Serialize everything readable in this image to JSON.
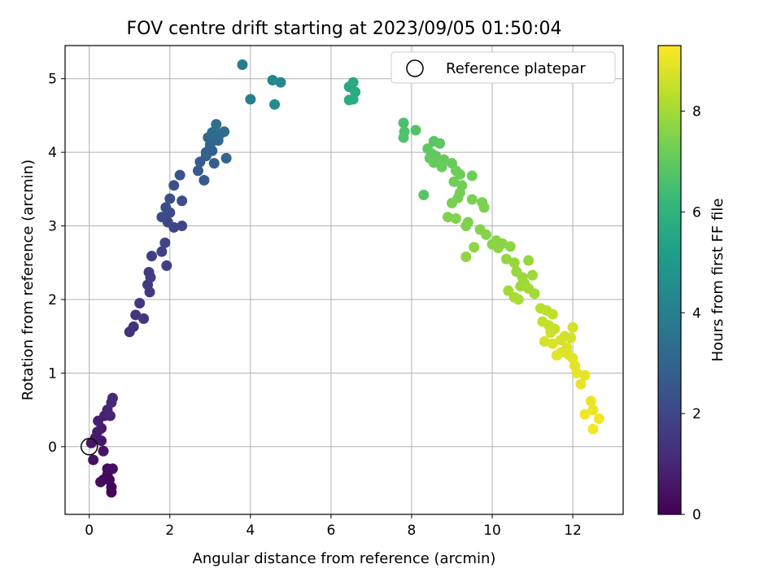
{
  "chart_data": {
    "type": "scatter",
    "title": "FOV centre drift starting at 2023/09/05 01:50:04",
    "xlabel": "Angular distance from reference (arcmin)",
    "ylabel": "Rotation from reference (arcmin)",
    "xlim": [
      -0.6,
      13.25
    ],
    "ylim": [
      -0.92,
      5.45
    ],
    "xticks": [
      0,
      2,
      4,
      6,
      8,
      10,
      12
    ],
    "yticks": [
      0,
      1,
      2,
      3,
      4,
      5
    ],
    "grid": true,
    "legend": {
      "label": "Reference platepar",
      "placement": "top-right"
    },
    "reference_point": {
      "x": 0,
      "y": 0
    },
    "colorbar": {
      "label": "Hours from first FF file",
      "min": 0,
      "max": 9.3,
      "ticks": [
        0,
        2,
        4,
        6,
        8
      ],
      "colormap": "viridis",
      "stops": [
        "#440154",
        "#482878",
        "#3e4989",
        "#31688e",
        "#26828e",
        "#1f9e89",
        "#35b779",
        "#6ece58",
        "#b5de2b",
        "#fde725"
      ]
    },
    "points": [
      {
        "x": 0.55,
        "y": -0.62,
        "h": 0.05
      },
      {
        "x": 0.55,
        "y": -0.55,
        "h": 0.1
      },
      {
        "x": 0.5,
        "y": -0.45,
        "h": 0.15
      },
      {
        "x": 0.45,
        "y": -0.38,
        "h": 0.2
      },
      {
        "x": 0.35,
        "y": -0.45,
        "h": 0.25
      },
      {
        "x": 0.28,
        "y": -0.48,
        "h": 0.3
      },
      {
        "x": 0.45,
        "y": -0.3,
        "h": 0.35
      },
      {
        "x": 0.58,
        "y": -0.3,
        "h": 0.4
      },
      {
        "x": 0.1,
        "y": -0.18,
        "h": 0.45
      },
      {
        "x": 0.35,
        "y": -0.06,
        "h": 0.5
      },
      {
        "x": 0.05,
        "y": 0.05,
        "h": 0.55
      },
      {
        "x": 0.3,
        "y": 0.08,
        "h": 0.6
      },
      {
        "x": 0.15,
        "y": 0.12,
        "h": 0.65
      },
      {
        "x": 0.2,
        "y": 0.2,
        "h": 0.7
      },
      {
        "x": 0.3,
        "y": 0.25,
        "h": 0.75
      },
      {
        "x": 0.22,
        "y": 0.35,
        "h": 0.8
      },
      {
        "x": 0.38,
        "y": 0.42,
        "h": 0.85
      },
      {
        "x": 0.45,
        "y": 0.5,
        "h": 0.9
      },
      {
        "x": 0.52,
        "y": 0.42,
        "h": 0.95
      },
      {
        "x": 0.55,
        "y": 0.6,
        "h": 1.0
      },
      {
        "x": 0.58,
        "y": 0.66,
        "h": 1.05
      },
      {
        "x": 1.0,
        "y": 1.56,
        "h": 1.3
      },
      {
        "x": 1.1,
        "y": 1.63,
        "h": 1.35
      },
      {
        "x": 1.15,
        "y": 1.79,
        "h": 1.4
      },
      {
        "x": 1.35,
        "y": 1.74,
        "h": 1.45
      },
      {
        "x": 1.25,
        "y": 1.95,
        "h": 1.5
      },
      {
        "x": 1.5,
        "y": 2.1,
        "h": 1.55
      },
      {
        "x": 1.45,
        "y": 2.2,
        "h": 1.6
      },
      {
        "x": 1.52,
        "y": 2.3,
        "h": 1.65
      },
      {
        "x": 1.48,
        "y": 2.37,
        "h": 1.7
      },
      {
        "x": 1.55,
        "y": 2.59,
        "h": 1.75
      },
      {
        "x": 1.92,
        "y": 2.46,
        "h": 1.8
      },
      {
        "x": 1.8,
        "y": 2.65,
        "h": 1.85
      },
      {
        "x": 1.88,
        "y": 2.77,
        "h": 1.9
      },
      {
        "x": 2.1,
        "y": 2.98,
        "h": 1.95
      },
      {
        "x": 2.3,
        "y": 3.0,
        "h": 2.0
      },
      {
        "x": 1.95,
        "y": 3.05,
        "h": 2.05
      },
      {
        "x": 1.8,
        "y": 3.12,
        "h": 2.1
      },
      {
        "x": 2.0,
        "y": 3.18,
        "h": 2.15
      },
      {
        "x": 1.9,
        "y": 3.25,
        "h": 2.2
      },
      {
        "x": 2.3,
        "y": 3.34,
        "h": 2.25
      },
      {
        "x": 2.0,
        "y": 3.37,
        "h": 2.3
      },
      {
        "x": 2.1,
        "y": 3.55,
        "h": 2.35
      },
      {
        "x": 2.25,
        "y": 3.69,
        "h": 2.4
      },
      {
        "x": 2.85,
        "y": 3.62,
        "h": 2.6
      },
      {
        "x": 2.7,
        "y": 3.75,
        "h": 2.65
      },
      {
        "x": 2.75,
        "y": 3.87,
        "h": 2.7
      },
      {
        "x": 3.1,
        "y": 3.85,
        "h": 2.75
      },
      {
        "x": 2.9,
        "y": 3.95,
        "h": 2.8
      },
      {
        "x": 3.05,
        "y": 4.02,
        "h": 2.85
      },
      {
        "x": 2.9,
        "y": 4.0,
        "h": 2.9
      },
      {
        "x": 3.4,
        "y": 3.92,
        "h": 2.95
      },
      {
        "x": 3.0,
        "y": 4.1,
        "h": 3.0
      },
      {
        "x": 3.2,
        "y": 4.16,
        "h": 3.05
      },
      {
        "x": 2.95,
        "y": 4.2,
        "h": 3.1
      },
      {
        "x": 3.1,
        "y": 4.22,
        "h": 3.15
      },
      {
        "x": 3.25,
        "y": 4.25,
        "h": 3.2
      },
      {
        "x": 3.35,
        "y": 4.28,
        "h": 3.25
      },
      {
        "x": 3.05,
        "y": 4.27,
        "h": 3.3
      },
      {
        "x": 3.15,
        "y": 4.38,
        "h": 3.35
      },
      {
        "x": 3.8,
        "y": 5.19,
        "h": 3.9
      },
      {
        "x": 4.0,
        "y": 4.72,
        "h": 4.0
      },
      {
        "x": 4.55,
        "y": 4.98,
        "h": 4.3
      },
      {
        "x": 4.75,
        "y": 4.95,
        "h": 4.4
      },
      {
        "x": 4.6,
        "y": 4.65,
        "h": 4.5
      },
      {
        "x": 6.45,
        "y": 4.89,
        "h": 5.6
      },
      {
        "x": 6.55,
        "y": 4.95,
        "h": 5.65
      },
      {
        "x": 6.6,
        "y": 4.82,
        "h": 5.7
      },
      {
        "x": 6.45,
        "y": 4.71,
        "h": 5.75
      },
      {
        "x": 6.55,
        "y": 4.72,
        "h": 5.8
      },
      {
        "x": 7.8,
        "y": 4.4,
        "h": 6.6
      },
      {
        "x": 7.82,
        "y": 4.28,
        "h": 6.65
      },
      {
        "x": 7.8,
        "y": 4.2,
        "h": 6.7
      },
      {
        "x": 8.1,
        "y": 4.3,
        "h": 6.75
      },
      {
        "x": 8.3,
        "y": 3.42,
        "h": 6.8
      },
      {
        "x": 8.55,
        "y": 4.15,
        "h": 6.85
      },
      {
        "x": 8.7,
        "y": 4.12,
        "h": 6.9
      },
      {
        "x": 8.4,
        "y": 4.05,
        "h": 6.95
      },
      {
        "x": 8.5,
        "y": 3.98,
        "h": 7.0
      },
      {
        "x": 8.6,
        "y": 3.95,
        "h": 7.02
      },
      {
        "x": 8.45,
        "y": 3.92,
        "h": 7.05
      },
      {
        "x": 8.8,
        "y": 3.9,
        "h": 7.08
      },
      {
        "x": 8.55,
        "y": 3.86,
        "h": 7.1
      },
      {
        "x": 8.75,
        "y": 3.8,
        "h": 7.12
      },
      {
        "x": 9.0,
        "y": 3.85,
        "h": 7.15
      },
      {
        "x": 9.1,
        "y": 3.75,
        "h": 7.18
      },
      {
        "x": 9.2,
        "y": 3.7,
        "h": 7.2
      },
      {
        "x": 9.5,
        "y": 3.68,
        "h": 7.22
      },
      {
        "x": 9.05,
        "y": 3.6,
        "h": 7.25
      },
      {
        "x": 9.25,
        "y": 3.55,
        "h": 7.28
      },
      {
        "x": 9.2,
        "y": 3.45,
        "h": 7.3
      },
      {
        "x": 9.15,
        "y": 3.38,
        "h": 7.32
      },
      {
        "x": 9.0,
        "y": 3.31,
        "h": 7.35
      },
      {
        "x": 9.5,
        "y": 3.36,
        "h": 7.38
      },
      {
        "x": 9.75,
        "y": 3.32,
        "h": 7.4
      },
      {
        "x": 9.8,
        "y": 3.25,
        "h": 7.42
      },
      {
        "x": 9.4,
        "y": 3.05,
        "h": 7.45
      },
      {
        "x": 9.35,
        "y": 3.0,
        "h": 7.48
      },
      {
        "x": 8.9,
        "y": 3.12,
        "h": 7.5
      },
      {
        "x": 9.1,
        "y": 3.1,
        "h": 7.52
      },
      {
        "x": 9.7,
        "y": 2.95,
        "h": 7.55
      },
      {
        "x": 9.85,
        "y": 2.88,
        "h": 7.58
      },
      {
        "x": 10.0,
        "y": 2.75,
        "h": 7.6
      },
      {
        "x": 10.1,
        "y": 2.8,
        "h": 7.62
      },
      {
        "x": 10.25,
        "y": 2.76,
        "h": 7.65
      },
      {
        "x": 10.15,
        "y": 2.7,
        "h": 7.68
      },
      {
        "x": 10.45,
        "y": 2.72,
        "h": 7.7
      },
      {
        "x": 9.55,
        "y": 2.71,
        "h": 7.72
      },
      {
        "x": 9.35,
        "y": 2.58,
        "h": 7.75
      },
      {
        "x": 10.35,
        "y": 2.55,
        "h": 7.78
      },
      {
        "x": 10.55,
        "y": 2.5,
        "h": 7.8
      },
      {
        "x": 10.9,
        "y": 2.53,
        "h": 7.82
      },
      {
        "x": 10.6,
        "y": 2.38,
        "h": 7.85
      },
      {
        "x": 10.75,
        "y": 2.3,
        "h": 7.88
      },
      {
        "x": 11.0,
        "y": 2.33,
        "h": 7.9
      },
      {
        "x": 10.8,
        "y": 2.22,
        "h": 7.92
      },
      {
        "x": 10.7,
        "y": 2.18,
        "h": 7.95
      },
      {
        "x": 10.4,
        "y": 2.12,
        "h": 7.98
      },
      {
        "x": 10.9,
        "y": 2.15,
        "h": 8.0
      },
      {
        "x": 11.05,
        "y": 2.08,
        "h": 8.02
      },
      {
        "x": 10.55,
        "y": 2.03,
        "h": 8.05
      },
      {
        "x": 10.65,
        "y": 2.0,
        "h": 8.08
      },
      {
        "x": 11.2,
        "y": 1.88,
        "h": 8.3
      },
      {
        "x": 11.35,
        "y": 1.85,
        "h": 8.35
      },
      {
        "x": 11.5,
        "y": 1.8,
        "h": 8.4
      },
      {
        "x": 11.25,
        "y": 1.7,
        "h": 8.45
      },
      {
        "x": 11.4,
        "y": 1.65,
        "h": 8.5
      },
      {
        "x": 11.55,
        "y": 1.6,
        "h": 8.55
      },
      {
        "x": 11.45,
        "y": 1.55,
        "h": 8.6
      },
      {
        "x": 11.8,
        "y": 1.5,
        "h": 8.65
      },
      {
        "x": 12.0,
        "y": 1.62,
        "h": 8.68
      },
      {
        "x": 11.95,
        "y": 1.48,
        "h": 8.7
      },
      {
        "x": 11.7,
        "y": 1.45,
        "h": 8.72
      },
      {
        "x": 11.3,
        "y": 1.43,
        "h": 8.75
      },
      {
        "x": 11.5,
        "y": 1.4,
        "h": 8.78
      },
      {
        "x": 11.85,
        "y": 1.35,
        "h": 8.8
      },
      {
        "x": 11.7,
        "y": 1.28,
        "h": 8.82
      },
      {
        "x": 11.9,
        "y": 1.25,
        "h": 8.85
      },
      {
        "x": 12.0,
        "y": 1.2,
        "h": 8.88
      },
      {
        "x": 11.6,
        "y": 1.24,
        "h": 8.9
      },
      {
        "x": 12.05,
        "y": 1.1,
        "h": 8.92
      },
      {
        "x": 12.1,
        "y": 1.0,
        "h": 8.95
      },
      {
        "x": 12.3,
        "y": 0.97,
        "h": 8.98
      },
      {
        "x": 12.2,
        "y": 0.85,
        "h": 9.0
      },
      {
        "x": 12.45,
        "y": 0.62,
        "h": 9.05
      },
      {
        "x": 12.5,
        "y": 0.5,
        "h": 9.1
      },
      {
        "x": 12.3,
        "y": 0.44,
        "h": 9.12
      },
      {
        "x": 12.65,
        "y": 0.38,
        "h": 9.15
      },
      {
        "x": 12.5,
        "y": 0.24,
        "h": 9.2
      }
    ]
  }
}
